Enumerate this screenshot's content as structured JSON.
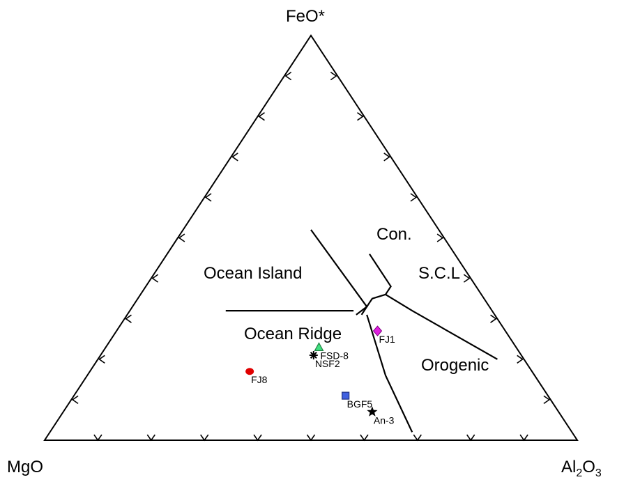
{
  "chart_data": {
    "type": "ternary",
    "vertices": {
      "top": "FeO*",
      "left": "MgO",
      "right_base": "Al",
      "right_sub1": "2",
      "right_mid": "O",
      "right_sub2": "3"
    },
    "grid": false,
    "fields": [
      {
        "name": "Con.",
        "label": "Con."
      },
      {
        "name": "S.C.L",
        "label": "S.C.L"
      },
      {
        "name": "Ocean Island",
        "label": "Ocean Island"
      },
      {
        "name": "Ocean Ridge",
        "label": "Ocean Ridge"
      },
      {
        "name": "Orogenic",
        "label": "Orogenic"
      }
    ],
    "boundaries": [
      [
        [
          0.54,
          0.3
        ],
        [
          0.24,
          0.7
        ]
      ],
      [
        [
          0.25,
          0.34
        ],
        [
          0.63,
          0.1
        ]
      ],
      [
        [
          0.47,
          0.21
        ],
        [
          0.6,
          0.09
        ]
      ],
      [
        [
          0.57,
          0.17
        ],
        [
          0.35,
          0.38
        ]
      ],
      [
        [
          0.62,
          0.15
        ],
        [
          0.27,
          0.71
        ]
      ],
      [
        [
          0.57,
          0.17
        ],
        [
          0.63,
          0.15
        ]
      ]
    ],
    "samples": [
      {
        "label": "FJ1",
        "color": "#e020e0",
        "marker": "diamond",
        "mgo": 0.24,
        "feo": 0.27,
        "al2o3": 0.49
      },
      {
        "label": "FSD-8",
        "color": "#40e080",
        "marker": "triangle",
        "mgo": 0.37,
        "feo": 0.23,
        "al2o3": 0.4
      },
      {
        "label": "NSF2",
        "color": "#000000",
        "marker": "asterisk",
        "mgo": 0.39,
        "feo": 0.21,
        "al2o3": 0.4
      },
      {
        "label": "FJ8",
        "color": "#e00000",
        "marker": "circle",
        "mgo": 0.53,
        "feo": 0.17,
        "al2o3": 0.3
      },
      {
        "label": "BGF5",
        "color": "#4060e0",
        "marker": "square",
        "mgo": 0.38,
        "feo": 0.11,
        "al2o3": 0.51
      },
      {
        "label": "An-3",
        "color": "#000000",
        "marker": "star",
        "mgo": 0.35,
        "feo": 0.07,
        "al2o3": 0.58
      }
    ]
  }
}
